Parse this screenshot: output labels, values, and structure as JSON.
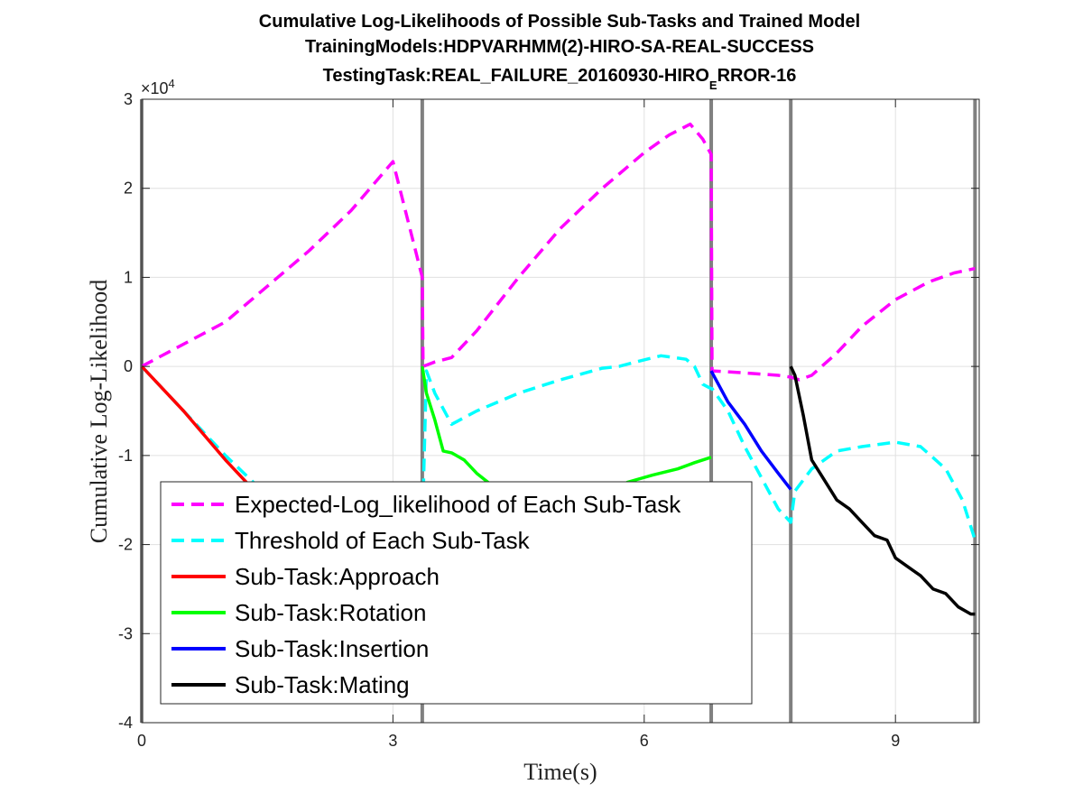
{
  "chart_data": {
    "type": "line",
    "title_lines": [
      "Cumulative Log-Likelihoods of Possible Sub-Tasks and Trained Model",
      "TrainingModels:HDPVARHMM(2)-HIRO-SA-REAL-SUCCESS",
      "TestingTask:REAL_FAILURE_20160930-HIRO"
    ],
    "title_subscript": "E",
    "title_tail": "RROR-16",
    "xlabel": "Time(s)",
    "ylabel": "Cumulative Log-Likelihood",
    "y_exponent_base": "×10",
    "y_exponent_power": "4",
    "xlim": [
      0,
      10
    ],
    "ylim": [
      -4,
      3
    ],
    "xticks": [
      0,
      3,
      6,
      9
    ],
    "yticks": [
      -4,
      -3,
      -2,
      -1,
      0,
      1,
      2,
      3
    ],
    "grid": true,
    "legend_position": "lower-left",
    "boundaries": [
      3.35,
      6.8,
      7.75,
      9.95
    ],
    "series": [
      {
        "name": "Expected-Log_likelihood of Each Sub-Task",
        "color": "#ff00ff",
        "style": "dashed",
        "x": [
          0,
          0.3,
          0.6,
          1.0,
          1.5,
          2.0,
          2.5,
          3.0,
          3.35,
          3.36,
          3.5,
          3.7,
          4.0,
          4.5,
          5.0,
          5.5,
          6.0,
          6.3,
          6.55,
          6.7,
          6.8,
          6.81,
          7.0,
          7.3,
          7.6,
          7.75,
          7.85,
          8.0,
          8.3,
          8.6,
          9.0,
          9.4,
          9.7,
          9.95
        ],
        "y": [
          0,
          0.15,
          0.3,
          0.5,
          0.9,
          1.3,
          1.75,
          2.3,
          1.0,
          0.0,
          0.05,
          0.1,
          0.4,
          1.0,
          1.55,
          2.0,
          2.4,
          2.6,
          2.72,
          2.55,
          2.38,
          -0.05,
          -0.06,
          -0.08,
          -0.1,
          -0.12,
          -0.15,
          -0.1,
          0.15,
          0.45,
          0.75,
          0.95,
          1.05,
          1.1
        ]
      },
      {
        "name": "Threshold of Each Sub-Task",
        "color": "#00ffff",
        "style": "dashed",
        "x": [
          0,
          0.5,
          1.0,
          1.5,
          2.0,
          2.5,
          3.0,
          3.35,
          3.36,
          3.4,
          3.5,
          3.7,
          4.0,
          4.5,
          5.0,
          5.5,
          5.7,
          5.9,
          6.2,
          6.5,
          6.6,
          6.7,
          6.8,
          6.81,
          7.0,
          7.2,
          7.4,
          7.6,
          7.75,
          7.8,
          8.0,
          8.3,
          8.6,
          9.0,
          9.3,
          9.6,
          9.8,
          9.95
        ],
        "y": [
          0,
          -0.5,
          -1.0,
          -1.45,
          -1.9,
          -2.3,
          -2.7,
          -2.9,
          -1.5,
          -0.05,
          -0.3,
          -0.65,
          -0.5,
          -0.3,
          -0.15,
          -0.02,
          0.0,
          0.05,
          0.12,
          0.08,
          0.0,
          -0.2,
          -0.25,
          -0.25,
          -0.5,
          -0.9,
          -1.25,
          -1.6,
          -1.75,
          -1.4,
          -1.15,
          -0.95,
          -0.9,
          -0.85,
          -0.9,
          -1.15,
          -1.5,
          -1.95
        ]
      },
      {
        "name": "Sub-Task:Approach",
        "color": "#ff0000",
        "style": "solid",
        "x": [
          0,
          0.5,
          1.0,
          1.5,
          2.0,
          2.5,
          3.0,
          3.35
        ],
        "y": [
          0,
          -0.5,
          -1.05,
          -1.55,
          -2.05,
          -2.55,
          -3.0,
          -3.3
        ]
      },
      {
        "name": "Sub-Task:Rotation",
        "color": "#00ff00",
        "style": "solid",
        "x": [
          3.35,
          3.4,
          3.5,
          3.6,
          3.7,
          3.85,
          4.0,
          4.2,
          4.5,
          5.0,
          5.5,
          5.8,
          6.1,
          6.4,
          6.6,
          6.8
        ],
        "y": [
          0,
          -0.3,
          -0.6,
          -0.95,
          -0.97,
          -1.05,
          -1.2,
          -1.35,
          -1.5,
          -1.55,
          -1.45,
          -1.3,
          -1.22,
          -1.15,
          -1.08,
          -1.02
        ]
      },
      {
        "name": "Sub-Task:Insertion",
        "color": "#0000ff",
        "style": "solid",
        "x": [
          6.8,
          7.0,
          7.2,
          7.4,
          7.6,
          7.75
        ],
        "y": [
          -0.05,
          -0.4,
          -0.65,
          -0.95,
          -1.2,
          -1.38
        ]
      },
      {
        "name": "Sub-Task:Mating",
        "color": "#000000",
        "style": "solid",
        "x": [
          7.75,
          7.8,
          7.9,
          8.0,
          8.1,
          8.2,
          8.3,
          8.45,
          8.6,
          8.75,
          8.9,
          9.0,
          9.15,
          9.3,
          9.45,
          9.6,
          9.75,
          9.9,
          9.95
        ],
        "y": [
          0,
          -0.1,
          -0.55,
          -1.05,
          -1.2,
          -1.35,
          -1.5,
          -1.6,
          -1.75,
          -1.9,
          -1.95,
          -2.15,
          -2.25,
          -2.35,
          -2.5,
          -2.55,
          -2.7,
          -2.78,
          -2.78
        ]
      }
    ]
  }
}
